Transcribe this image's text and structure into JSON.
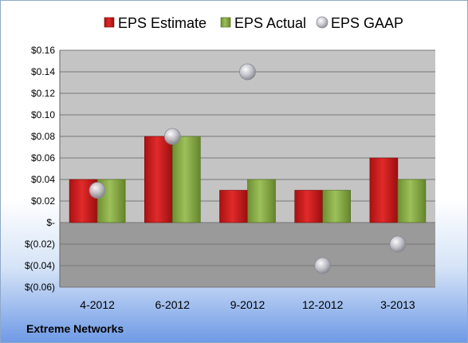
{
  "chart_data": {
    "type": "bar",
    "categories": [
      "4-2012",
      "6-2012",
      "9-2012",
      "12-2012",
      "3-2013"
    ],
    "series": [
      {
        "name": "EPS Estimate",
        "kind": "bar",
        "color": "#d42020",
        "values": [
          0.04,
          0.08,
          0.03,
          0.03,
          0.06
        ]
      },
      {
        "name": "EPS Actual",
        "kind": "bar",
        "color": "#8cb04a",
        "values": [
          0.04,
          0.08,
          0.04,
          0.03,
          0.04
        ]
      },
      {
        "name": "EPS GAAP",
        "kind": "marker",
        "color": "#b8b8c4",
        "values": [
          0.03,
          0.08,
          0.14,
          -0.04,
          -0.02
        ]
      }
    ],
    "ylim": [
      -0.06,
      0.16
    ],
    "yticks": [
      0.16,
      0.14,
      0.12,
      0.1,
      0.08,
      0.06,
      0.04,
      0.02,
      0,
      -0.02,
      -0.04,
      -0.06
    ],
    "ytick_labels": [
      "$0.16",
      "$0.14",
      "$0.12",
      "$0.10",
      "$0.08",
      "$0.06",
      "$0.04",
      "$0.02",
      "$-",
      "$(0.02)",
      "$(0.04)",
      "$(0.06)"
    ],
    "grid": true,
    "legend_position": "top",
    "plot_colors": {
      "positive_area": "#c4c4c4",
      "negative_area": "#9a9a9a",
      "gridline": "#777777"
    }
  },
  "footer": {
    "company": "Extreme Networks"
  }
}
